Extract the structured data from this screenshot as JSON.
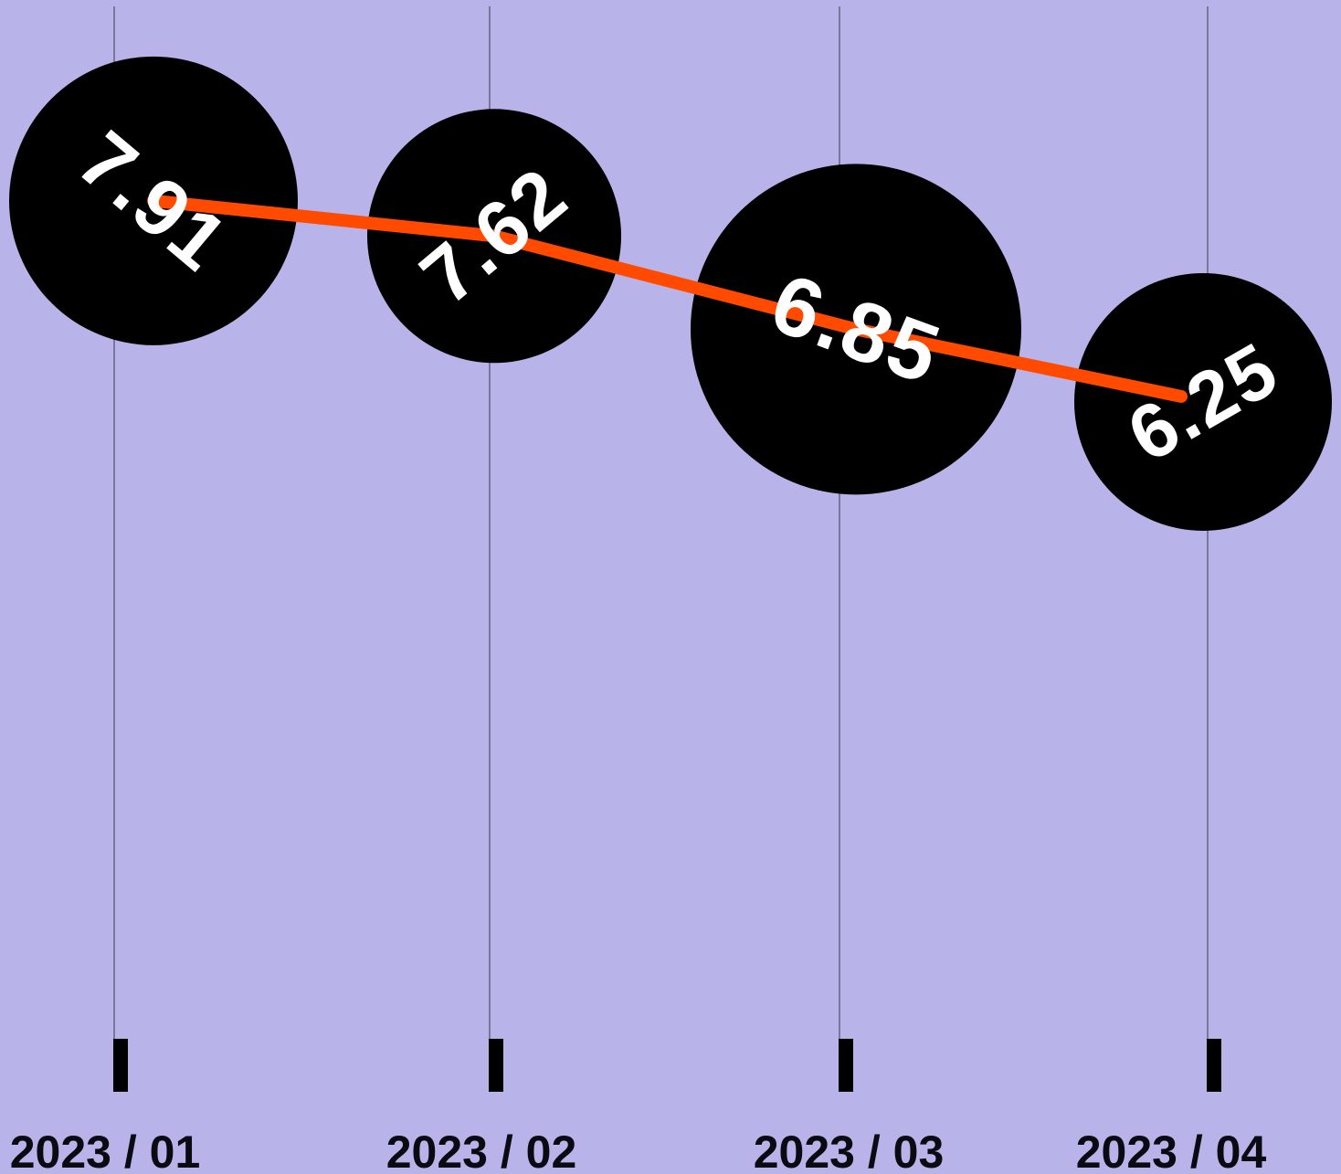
{
  "chart_data": {
    "type": "line",
    "categories": [
      "2023 / 01",
      "2023 / 02",
      "2023 / 03",
      "2023 / 04"
    ],
    "values": [
      7.91,
      7.62,
      6.85,
      6.25
    ],
    "value_labels": [
      "7.91",
      "7.62",
      "6.85",
      "6.25"
    ],
    "title": "",
    "xlabel": "",
    "ylabel": "",
    "grid": "vertical",
    "colors": {
      "background": "#b8b4ea",
      "line": "#ff4a00",
      "bubble": "#000000",
      "value_text": "#ffffff",
      "gridline": "#3a3a4a",
      "tick": "#000000",
      "tick_text": "#0a0a12"
    }
  }
}
